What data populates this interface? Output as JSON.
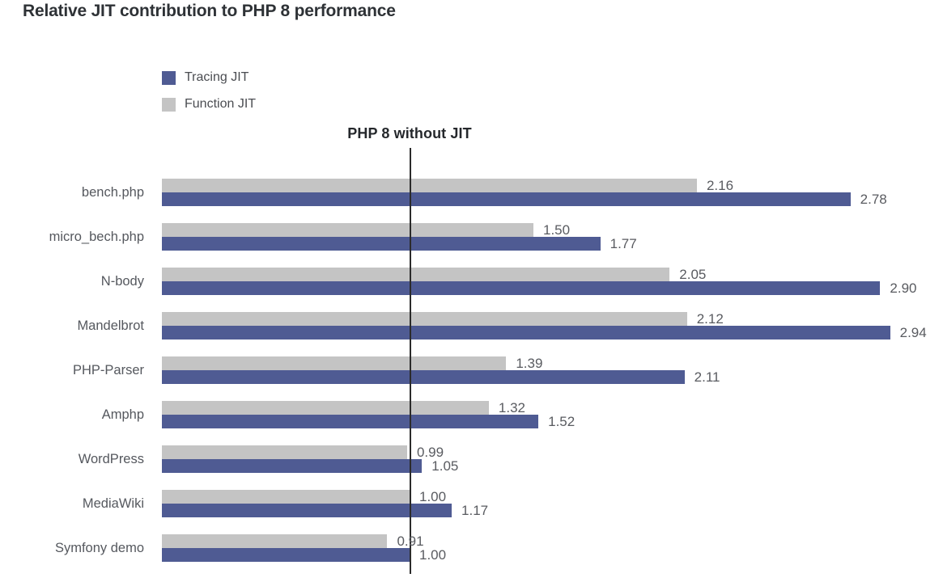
{
  "title": "Relative JIT contribution to PHP 8 performance",
  "legend": {
    "items": [
      {
        "label": "Tracing JIT",
        "color": "#4f5b93"
      },
      {
        "label": "Function JIT",
        "color": "#c4c4c4"
      }
    ],
    "position": "top-left"
  },
  "reference_line": {
    "label": "PHP 8 without JIT",
    "value": 1.0
  },
  "colors": {
    "tracing_jit": "#4f5b93",
    "function_jit": "#c4c4c4",
    "reference_line": "#2b2b2b",
    "title_text": "#2e3236",
    "label_text": "#55585e"
  },
  "chart_data": {
    "type": "bar",
    "orientation": "horizontal",
    "title": "Relative JIT contribution to PHP 8 performance",
    "categories": [
      "bench.php",
      "micro_bech.php",
      "N-body",
      "Mandelbrot",
      "PHP-Parser",
      "Amphp",
      "WordPress",
      "MediaWiki",
      "Symfony demo"
    ],
    "series": [
      {
        "name": "Tracing JIT",
        "color": "#4f5b93",
        "values": [
          2.78,
          1.77,
          2.9,
          2.94,
          2.11,
          1.52,
          1.05,
          1.17,
          1.0
        ]
      },
      {
        "name": "Function JIT",
        "color": "#c4c4c4",
        "values": [
          2.16,
          1.5,
          2.05,
          2.12,
          1.39,
          1.32,
          0.99,
          1.0,
          0.91
        ]
      }
    ],
    "value_labels_shown": true,
    "value_label_decimals": 2,
    "xlabel": "",
    "ylabel": "",
    "xlim": [
      0,
      3.2
    ],
    "grid": false,
    "legend_position": "top-left",
    "reference_line": {
      "label": "PHP 8 without JIT",
      "value": 1.0
    }
  }
}
